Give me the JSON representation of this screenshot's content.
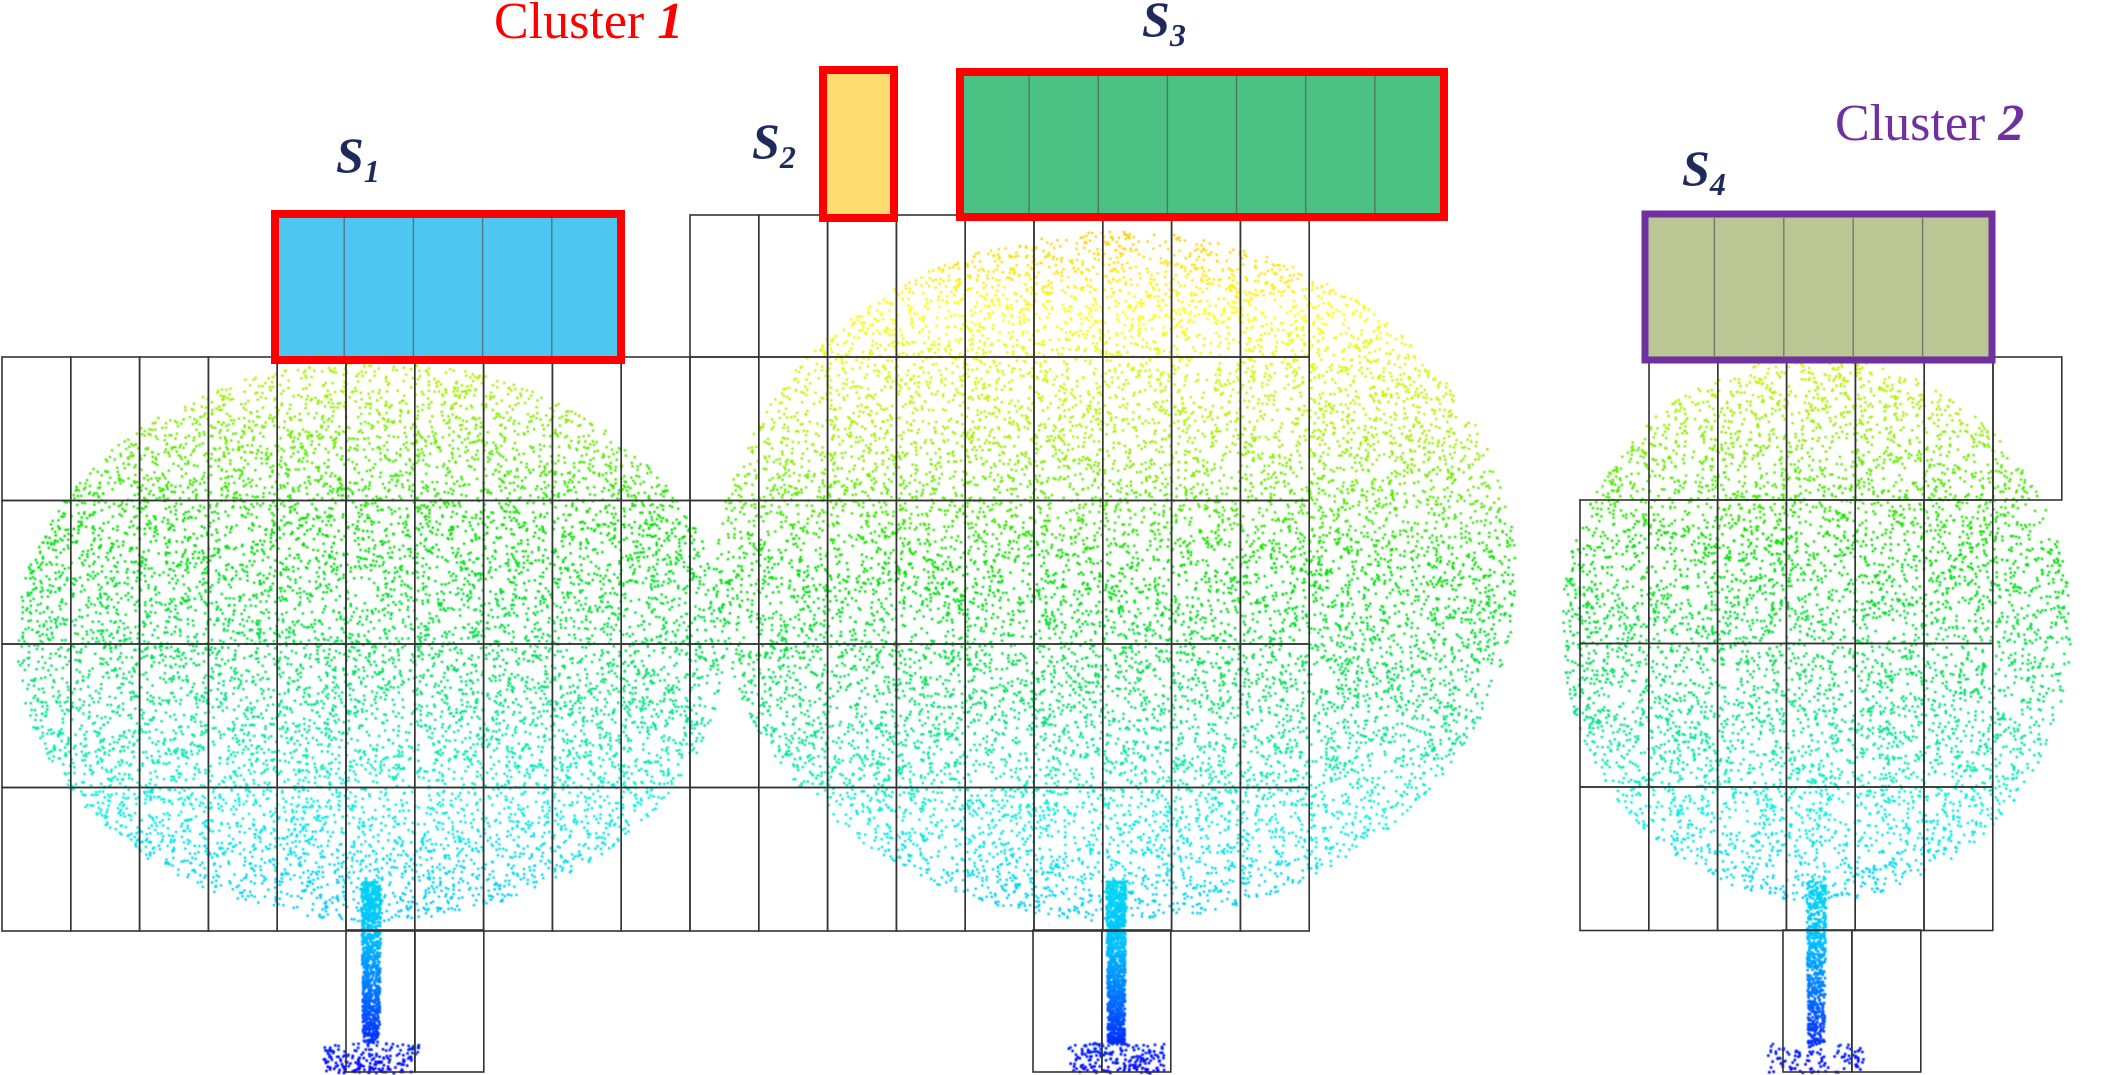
{
  "clusters": [
    {
      "prefix": "Cluster ",
      "number": "1",
      "color": "#ff0000"
    },
    {
      "prefix": "Cluster ",
      "number": "2",
      "color": "#7030a0"
    }
  ],
  "segments": [
    {
      "letter": "S",
      "sub": "1",
      "fill": "#3ec1f0",
      "border": "#ff0000"
    },
    {
      "letter": "S",
      "sub": "2",
      "fill": "#ffd966",
      "border": "#ff0000"
    },
    {
      "letter": "S",
      "sub": "3",
      "fill": "#3cbd7a",
      "border": "#ff0000"
    },
    {
      "letter": "S",
      "sub": "4",
      "fill": "#b5c18c",
      "border": "#7030a0"
    }
  ],
  "colors": {
    "label_text": "#1f2a5c",
    "grid_line": "#333333",
    "height_ramp": [
      "#0000ff",
      "#00bfff",
      "#00f0e0",
      "#00e060",
      "#00e000",
      "#a0f000",
      "#ffff00",
      "#ffb000"
    ]
  },
  "icons": [
    "tree-point-cloud-icon"
  ]
}
